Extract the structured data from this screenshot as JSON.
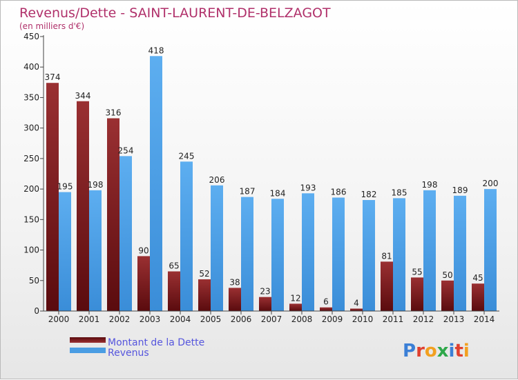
{
  "chart_data": {
    "type": "bar",
    "title": "Revenus/Dette - SAINT-LAURENT-DE-BELZAGOT",
    "subtitle": "(en milliers d'€)",
    "categories": [
      "2000",
      "2001",
      "2002",
      "2003",
      "2004",
      "2005",
      "2006",
      "2007",
      "2008",
      "2009",
      "2010",
      "2011",
      "2012",
      "2013",
      "2014"
    ],
    "series": [
      {
        "name": "Montant de la Dette",
        "color": "#7d1c1f",
        "values": [
          374,
          344,
          316,
          90,
          65,
          52,
          38,
          23,
          12,
          6,
          4,
          81,
          55,
          50,
          45
        ]
      },
      {
        "name": "Revenus",
        "color": "#4a9de3",
        "values": [
          195,
          198,
          254,
          418,
          245,
          206,
          187,
          184,
          193,
          186,
          182,
          185,
          198,
          189,
          200
        ]
      }
    ],
    "ylim": [
      0,
      450
    ],
    "yticks": [
      0,
      50,
      100,
      150,
      200,
      250,
      300,
      350,
      400,
      450
    ],
    "grid": false,
    "legend_position": "bottom-left",
    "data_labels": true
  },
  "logo": {
    "text": "Proxiti"
  }
}
